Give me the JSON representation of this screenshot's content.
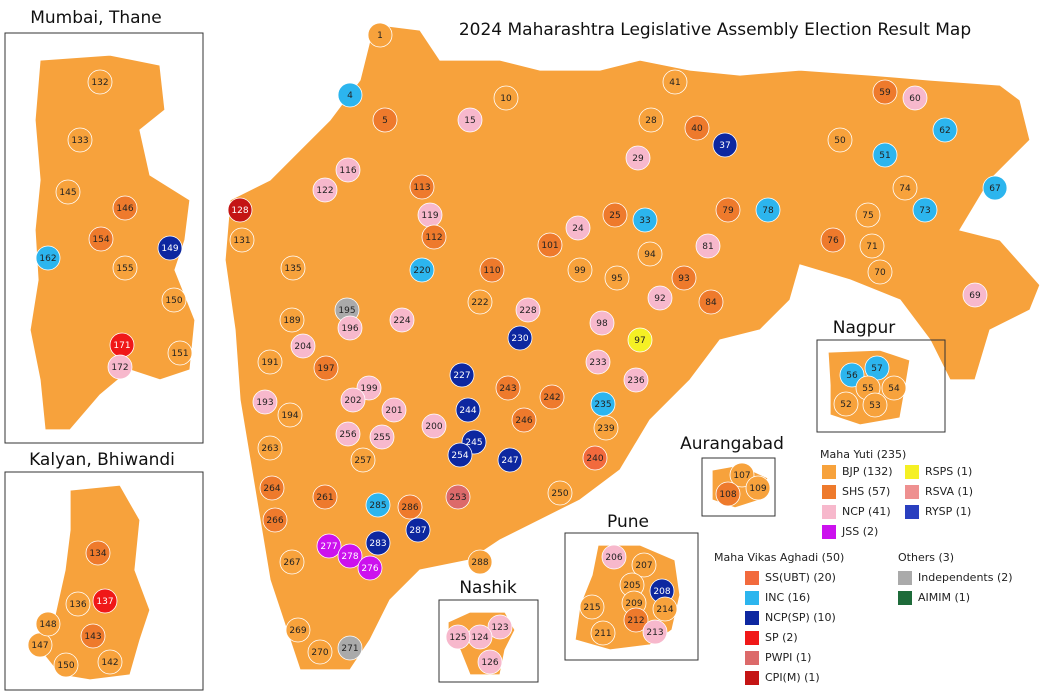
{
  "title": "2024 Maharashtra Legislative Assembly Election Result Map",
  "map_fill": "#f7a23c",
  "insets": [
    {
      "title": "Mumbai, Thane"
    },
    {
      "title": "Kalyan, Bhiwandi"
    },
    {
      "title": "Nagpur"
    },
    {
      "title": "Aurangabad"
    },
    {
      "title": "Nashik"
    },
    {
      "title": "Pune"
    }
  ],
  "legend": [
    {
      "group": "Maha Yuti (235)",
      "parties": [
        {
          "label": "BJP (132)",
          "color": "#f7a23c"
        },
        {
          "label": "SHS (57)",
          "color": "#ee7a2c"
        },
        {
          "label": "NCP (41)",
          "color": "#f7b8cc"
        },
        {
          "label": "JSS (2)",
          "color": "#cc11ee"
        },
        {
          "label": "RSPS (1)",
          "color": "#f5f024"
        },
        {
          "label": "RSVA (1)",
          "color": "#ee9090"
        },
        {
          "label": "RYSP (1)",
          "color": "#2a3fbf"
        }
      ]
    },
    {
      "group": "Maha Vikas Aghadi (50)",
      "parties": [
        {
          "label": "SS(UBT) (20)",
          "color": "#f26a3d"
        },
        {
          "label": "INC (16)",
          "color": "#2cb5ee"
        },
        {
          "label": "NCP(SP) (10)",
          "color": "#0d27a0"
        },
        {
          "label": "SP (2)",
          "color": "#f01818"
        },
        {
          "label": "PWPI (1)",
          "color": "#dc6a6a"
        },
        {
          "label": "CPI(M) (1)",
          "color": "#c41414"
        }
      ]
    },
    {
      "group": "Others (3)",
      "parties": [
        {
          "label": "Independents (2)",
          "color": "#aaaaaa"
        },
        {
          "label": "AIMIM (1)",
          "color": "#1e6b3a"
        }
      ]
    }
  ],
  "seats": [
    {
      "number": 1,
      "color": "#f7a23c"
    },
    {
      "number": 4,
      "color": "#2cb5ee"
    },
    {
      "number": 5,
      "color": "#ee7a2c"
    },
    {
      "number": 15,
      "color": "#f7b8cc"
    },
    {
      "number": 37,
      "color": "#0d27a0"
    },
    {
      "number": 33,
      "color": "#2cb5ee"
    },
    {
      "number": 51,
      "color": "#2cb5ee"
    },
    {
      "number": 62,
      "color": "#2cb5ee"
    },
    {
      "number": 67,
      "color": "#2cb5ee"
    },
    {
      "number": 73,
      "color": "#2cb5ee"
    },
    {
      "number": 78,
      "color": "#2cb5ee"
    },
    {
      "number": 76,
      "color": "#ee7a2c"
    },
    {
      "number": 69,
      "color": "#f7b8cc"
    },
    {
      "number": 60,
      "color": "#f7b8cc"
    },
    {
      "number": 24,
      "color": "#f7b8cc"
    },
    {
      "number": 122,
      "color": "#f7b8cc"
    },
    {
      "number": 119,
      "color": "#f7b8cc"
    },
    {
      "number": 128,
      "color": "#c41414"
    },
    {
      "number": 195,
      "color": "#aaaaaa"
    },
    {
      "number": 220,
      "color": "#2cb5ee"
    },
    {
      "number": 230,
      "color": "#0d27a0"
    },
    {
      "number": 97,
      "color": "#f5f024"
    },
    {
      "number": 227,
      "color": "#0d27a0"
    },
    {
      "number": 244,
      "color": "#0d27a0"
    },
    {
      "number": 245,
      "color": "#0d27a0"
    },
    {
      "number": 247,
      "color": "#0d27a0"
    },
    {
      "number": 254,
      "color": "#0d27a0"
    },
    {
      "number": 243,
      "color": "#ee7a2c"
    },
    {
      "number": 246,
      "color": "#ee7a2c"
    },
    {
      "number": 242,
      "color": "#ee7a2c"
    },
    {
      "number": 240,
      "color": "#f26a3d"
    },
    {
      "number": 253,
      "color": "#dc6a6a"
    },
    {
      "number": 285,
      "color": "#2cb5ee"
    },
    {
      "number": 287,
      "color": "#0d27a0"
    },
    {
      "number": 283,
      "color": "#0d27a0"
    },
    {
      "number": 277,
      "color": "#cc11ee"
    },
    {
      "number": 278,
      "color": "#cc11ee"
    },
    {
      "number": 276,
      "color": "#cc11ee"
    },
    {
      "number": 271,
      "color": "#aaaaaa"
    },
    {
      "number": 270,
      "color": "#f7a23c"
    },
    {
      "number": 269,
      "color": "#f7a23c"
    },
    {
      "number": 267,
      "color": "#f7a23c"
    },
    {
      "number": 266,
      "color": "#ee7a2c"
    },
    {
      "number": 264,
      "color": "#ee7a2c"
    },
    {
      "number": 263,
      "color": "#f7a23c"
    },
    {
      "number": 194,
      "color": "#f7a23c"
    },
    {
      "number": 193,
      "color": "#f7b8cc"
    },
    {
      "number": 191,
      "color": "#f7a23c"
    },
    {
      "number": 189,
      "color": "#f7a23c"
    },
    {
      "number": 196,
      "color": "#f7b8cc"
    },
    {
      "number": 224,
      "color": "#f7b8cc"
    },
    {
      "number": 222,
      "color": "#f7a23c"
    },
    {
      "number": 228,
      "color": "#f7b8cc"
    },
    {
      "number": 98,
      "color": "#f7b8cc"
    },
    {
      "number": 233,
      "color": "#f7b8cc"
    },
    {
      "number": 236,
      "color": "#f7b8cc"
    },
    {
      "number": 235,
      "color": "#2cb5ee"
    },
    {
      "number": 239,
      "color": "#f7a23c"
    },
    {
      "number": 250,
      "color": "#f7a23c"
    },
    {
      "number": 288,
      "color": "#f7a23c"
    },
    {
      "number": 286,
      "color": "#ee7a2c"
    },
    {
      "number": 261,
      "color": "#ee7a2c"
    },
    {
      "number": 257,
      "color": "#f7a23c"
    },
    {
      "number": 255,
      "color": "#f7b8cc"
    },
    {
      "number": 201,
      "color": "#f7b8cc"
    },
    {
      "number": 200,
      "color": "#f7b8cc"
    },
    {
      "number": 256,
      "color": "#f7b8cc"
    },
    {
      "number": 199,
      "color": "#f7b8cc"
    },
    {
      "number": 202,
      "color": "#f7b8cc"
    },
    {
      "number": 197,
      "color": "#ee7a2c"
    },
    {
      "number": 204,
      "color": "#f7b8cc"
    },
    {
      "number": 135,
      "color": "#f7a23c"
    },
    {
      "number": 131,
      "color": "#f7a23c"
    },
    {
      "number": 116,
      "color": "#f7b8cc"
    },
    {
      "number": 113,
      "color": "#ee7a2c"
    },
    {
      "number": 112,
      "color": "#ee7a2c"
    },
    {
      "number": 110,
      "color": "#ee7a2c"
    },
    {
      "number": 101,
      "color": "#ee7a2c"
    },
    {
      "number": 99,
      "color": "#f7a23c"
    },
    {
      "number": 95,
      "color": "#f7a23c"
    },
    {
      "number": 94,
      "color": "#f7a23c"
    },
    {
      "number": 92,
      "color": "#f7b8cc"
    },
    {
      "number": 81,
      "color": "#f7b8cc"
    },
    {
      "number": 84,
      "color": "#ee7a2c"
    },
    {
      "number": 93,
      "color": "#ee7a2c"
    },
    {
      "number": 79,
      "color": "#ee7a2c"
    },
    {
      "number": 75,
      "color": "#f7a23c"
    },
    {
      "number": 71,
      "color": "#f7a23c"
    },
    {
      "number": 70,
      "color": "#f7a23c"
    },
    {
      "number": 74,
      "color": "#f7a23c"
    },
    {
      "number": 40,
      "color": "#ee7a2c"
    },
    {
      "number": 41,
      "color": "#f7a23c"
    },
    {
      "number": 59,
      "color": "#ee7a2c"
    },
    {
      "number": 10,
      "color": "#f7a23c"
    },
    {
      "number": 28,
      "color": "#f7a23c"
    },
    {
      "number": 50,
      "color": "#f7a23c"
    },
    {
      "number": 25,
      "color": "#ee7a2c"
    },
    {
      "number": 29,
      "color": "#f7b8cc"
    },
    {
      "number": 132,
      "color": "#f7a23c"
    },
    {
      "number": 133,
      "color": "#f7a23c"
    },
    {
      "number": 145,
      "color": "#f7a23c"
    },
    {
      "number": 146,
      "color": "#ee7a2c"
    },
    {
      "number": 149,
      "color": "#0d27a0"
    },
    {
      "number": 150,
      "color": "#f7a23c"
    },
    {
      "number": 151,
      "color": "#f7a23c"
    },
    {
      "number": 162,
      "color": "#2cb5ee"
    },
    {
      "number": 171,
      "color": "#f01818"
    },
    {
      "number": 172,
      "color": "#f7b8cc"
    },
    {
      "number": 155,
      "color": "#f7a23c"
    },
    {
      "number": 154,
      "color": "#ee7a2c"
    },
    {
      "number": 134,
      "color": "#ee7a2c"
    },
    {
      "number": 137,
      "color": "#f01818"
    },
    {
      "number": 143,
      "color": "#ee7a2c"
    },
    {
      "number": 142,
      "color": "#f7a23c"
    },
    {
      "number": 136,
      "color": "#f7a23c"
    },
    {
      "number": 147,
      "color": "#f7a23c"
    },
    {
      "number": 148,
      "color": "#f7a23c"
    },
    {
      "number": 150,
      "color": "#f7a23c"
    },
    {
      "number": 56,
      "color": "#2cb5ee"
    },
    {
      "number": 57,
      "color": "#2cb5ee"
    },
    {
      "number": 55,
      "color": "#f7a23c"
    },
    {
      "number": 54,
      "color": "#f7a23c"
    },
    {
      "number": 52,
      "color": "#f7a23c"
    },
    {
      "number": 53,
      "color": "#f7a23c"
    },
    {
      "number": 107,
      "color": "#f7a23c"
    },
    {
      "number": 108,
      "color": "#ee7a2c"
    },
    {
      "number": 109,
      "color": "#f7a23c"
    },
    {
      "number": 123,
      "color": "#f7b8cc"
    },
    {
      "number": 124,
      "color": "#f7b8cc"
    },
    {
      "number": 125,
      "color": "#f7b8cc"
    },
    {
      "number": 126,
      "color": "#f7b8cc"
    },
    {
      "number": 206,
      "color": "#f7b8cc"
    },
    {
      "number": 207,
      "color": "#f7a23c"
    },
    {
      "number": 208,
      "color": "#0d27a0"
    },
    {
      "number": 205,
      "color": "#f7a23c"
    },
    {
      "number": 209,
      "color": "#f7a23c"
    },
    {
      "number": 211,
      "color": "#f7a23c"
    },
    {
      "number": 212,
      "color": "#ee7a2c"
    },
    {
      "number": 213,
      "color": "#f7b8cc"
    },
    {
      "number": 214,
      "color": "#f7a23c"
    },
    {
      "number": 215,
      "color": "#f7a23c"
    }
  ]
}
